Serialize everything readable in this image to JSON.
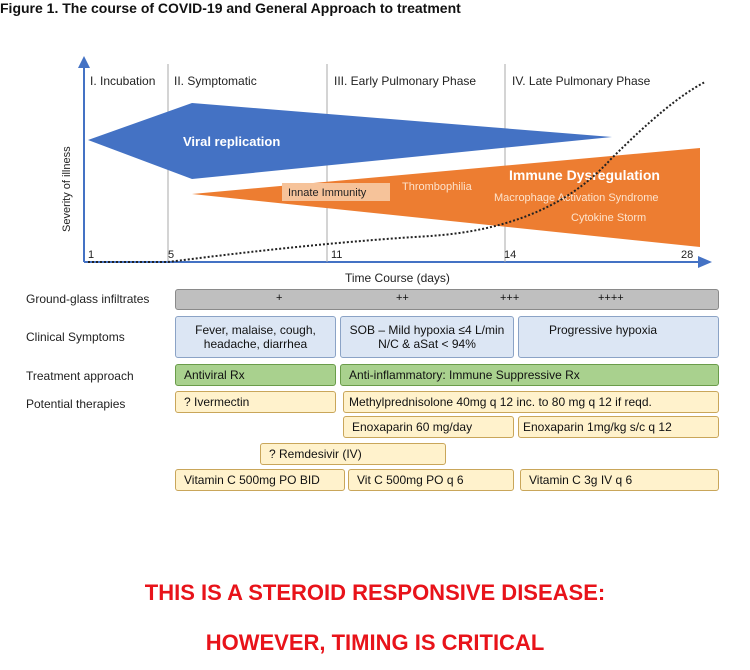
{
  "figure_title": "Figure 1.  The course of COVID-19 and General Approach to treatment",
  "phases": [
    "I. Incubation",
    "II. Symptomatic",
    "III. Early Pulmonary Phase",
    "IV. Late Pulmonary Phase"
  ],
  "y_axis_label": "Severity of illness",
  "x_axis_label": "Time Course (days)",
  "x_ticks": [
    "1",
    "5",
    "11",
    "14",
    "28"
  ],
  "triangles": {
    "viral": "Viral replication",
    "immune": "Immune Dysregulation",
    "innate": "Innate Immunity",
    "thrombophilia": "Thrombophilia",
    "macrophage": "Macrophage Activation Syndrome",
    "cytokine": "Cytokine Storm"
  },
  "colors": {
    "viral": "#4472c4",
    "immune": "#ed7d31",
    "curve": "#222222",
    "footer": "#e8131a"
  },
  "row_labels": {
    "ground_glass": "Ground-glass infiltrates",
    "clinical": "Clinical Symptoms",
    "treatment": "Treatment approach",
    "therapies": "Potential therapies"
  },
  "ground_glass": [
    "+",
    "++",
    "+++",
    "++++"
  ],
  "clinical": {
    "symptomatic": "Fever, malaise, cough, headache, diarrhea",
    "early": "SOB – Mild hypoxia ≤4 L/min N/C & aSat < 94%",
    "late": "Progressive hypoxia"
  },
  "treatment": {
    "antiviral": "Antiviral Rx",
    "anti_inflammatory": "Anti-inflammatory: Immune Suppressive Rx"
  },
  "therapies": {
    "ivermectin": "? Ivermectin",
    "methylpred": "Methylprednisolone 40mg q 12 inc. to 80 mg q 12 if reqd.",
    "enox_60": "Enoxaparin 60 mg/day",
    "enox_1mg": "Enoxaparin 1mg/kg s/c q 12",
    "remdesivir": "? Remdesivir (IV)",
    "vitc_oral_bid": "Vitamin C 500mg PO BID",
    "vitc_oral_q6": "Vit C 500mg PO q 6",
    "vitc_iv": "Vitamin C 3g IV q 6"
  },
  "footer": [
    "THIS IS A STEROID RESPONSIVE DISEASE:",
    "HOWEVER, TIMING IS CRITICAL"
  ]
}
